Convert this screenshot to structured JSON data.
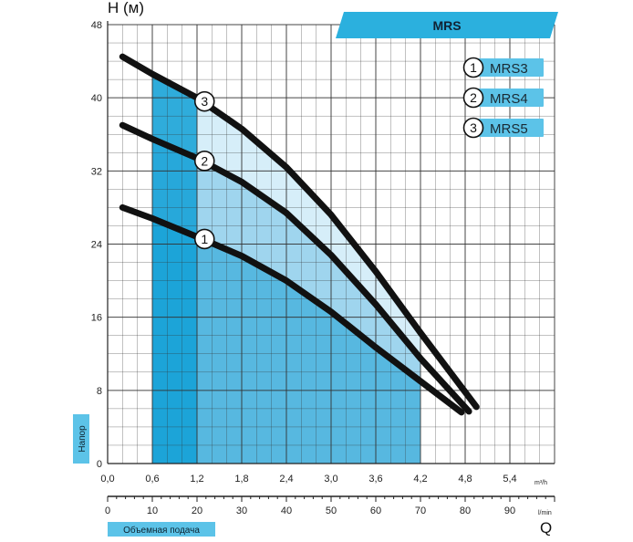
{
  "chart_data": {
    "type": "line",
    "title": "MRS",
    "y_axis": {
      "label": "H (м)",
      "side_label": "Напор",
      "range": [
        0,
        48
      ],
      "tick_values": [
        0,
        8,
        16,
        24,
        32,
        40,
        48
      ],
      "tick_labels": [
        "0",
        "8",
        "16",
        "24",
        "32",
        "40",
        "48"
      ]
    },
    "x_axis": {
      "unit": "m³/h",
      "range": [
        0,
        6.0
      ],
      "tick_values": [
        0,
        0.6,
        1.2,
        1.8,
        2.4,
        3.0,
        3.6,
        4.2,
        4.8,
        5.4
      ],
      "tick_labels": [
        "0,0",
        "0,6",
        "1,2",
        "1,8",
        "2,4",
        "3,0",
        "3,6",
        "4,2",
        "4,8",
        "5,4"
      ]
    },
    "x2_axis": {
      "unit": "l/min",
      "symbol": "Q",
      "label": "Объемная подача",
      "range": [
        0,
        100
      ],
      "tick_values": [
        0,
        10,
        20,
        30,
        40,
        50,
        60,
        70,
        80,
        90
      ],
      "tick_labels": [
        "0",
        "10",
        "20",
        "30",
        "40",
        "50",
        "60",
        "70",
        "80",
        "90"
      ]
    },
    "grid": true,
    "legend_position": "top-right",
    "recommended_range": [
      0.6,
      4.2
    ],
    "series": [
      {
        "name": "MRS3",
        "badge": "1",
        "color": "#111111",
        "x": [
          0.2,
          0.6,
          1.2,
          1.8,
          2.4,
          3.0,
          3.6,
          4.2,
          4.75
        ],
        "y": [
          28,
          26.8,
          24.8,
          22.7,
          20,
          16.6,
          12.7,
          9,
          5.6
        ]
      },
      {
        "name": "MRS4",
        "badge": "2",
        "color": "#111111",
        "x": [
          0.2,
          0.6,
          1.2,
          1.8,
          2.4,
          3.0,
          3.6,
          4.2,
          4.85
        ],
        "y": [
          37,
          35.5,
          33.4,
          30.8,
          27.4,
          22.8,
          17.4,
          11.5,
          5.7
        ]
      },
      {
        "name": "MRS5",
        "badge": "3",
        "color": "#111111",
        "x": [
          0.2,
          0.6,
          1.2,
          1.8,
          2.4,
          3.0,
          3.6,
          4.2,
          4.95
        ],
        "y": [
          44.5,
          42.6,
          40,
          36.6,
          32.4,
          27.2,
          21,
          14.3,
          6.2
        ]
      }
    ],
    "colors": {
      "band_1": "#12a0d6",
      "band_2": "#57b8e0",
      "band_3": "#9fd5ee",
      "band_4": "#d6eef9",
      "banner": "#2bb0de",
      "legend_tab": "#5cc3e8",
      "grid": "#333333"
    }
  }
}
